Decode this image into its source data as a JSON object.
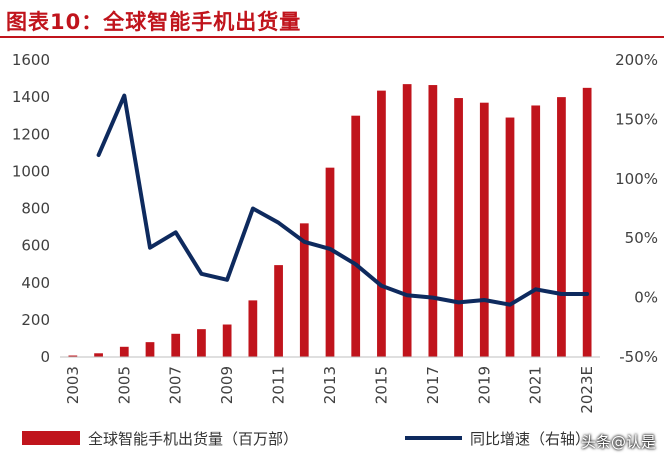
{
  "title": "图表10：全球智能手机出货量",
  "watermark": "头条@认是",
  "colors": {
    "bar": "#c0141c",
    "line": "#0e2a5e",
    "title": "#c0141c"
  },
  "chart_data": {
    "type": "bar",
    "categories": [
      "2003",
      "2004",
      "2005",
      "2006",
      "2007",
      "2008",
      "2009",
      "2010",
      "2011",
      "2012",
      "2013",
      "2014",
      "2015",
      "2016",
      "2017",
      "2018",
      "2019",
      "2020",
      "2021",
      "2022",
      "2023E"
    ],
    "x_tick_labels": [
      "2003",
      "2005",
      "2007",
      "2009",
      "2011",
      "2013",
      "2015",
      "2017",
      "2019",
      "2021",
      "2023E"
    ],
    "series": [
      {
        "name": "全球智能手机出货量（百万部）",
        "type": "bar",
        "axis": "left",
        "values": [
          8,
          20,
          55,
          80,
          125,
          150,
          175,
          305,
          495,
          720,
          1020,
          1300,
          1435,
          1470,
          1465,
          1395,
          1370,
          1290,
          1355,
          1400,
          1450
        ]
      },
      {
        "name": "同比增速（右轴）",
        "type": "line",
        "axis": "right",
        "values": [
          null,
          120,
          170,
          42,
          55,
          20,
          15,
          75,
          63,
          47,
          41,
          28,
          10,
          2,
          0,
          -4,
          -2,
          -6,
          7,
          3,
          3
        ]
      }
    ],
    "y_left": {
      "min": 0,
      "max": 1600,
      "ticks": [
        "0",
        "200",
        "400",
        "600",
        "800",
        "1000",
        "1200",
        "1400",
        "1600"
      ]
    },
    "y_right": {
      "min": -50,
      "max": 200,
      "ticks": [
        "-50%",
        "0%",
        "50%",
        "100%",
        "150%",
        "200%"
      ]
    },
    "legend_position": "bottom"
  }
}
